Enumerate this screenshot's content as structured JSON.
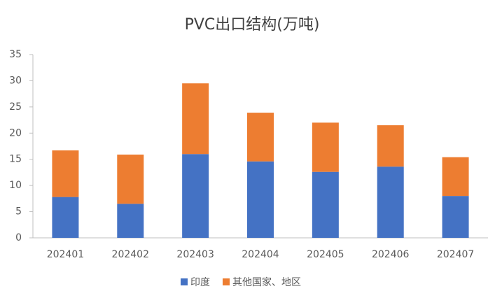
{
  "chart_data": {
    "type": "stacked-bar",
    "title": "PVC出口结构(万吨)",
    "categories": [
      "202401",
      "202402",
      "202403",
      "202404",
      "202405",
      "202406",
      "202407"
    ],
    "series": [
      {
        "name": "印度",
        "color": "#4472c4",
        "values": [
          7.8,
          6.5,
          16.0,
          14.6,
          12.6,
          13.6,
          8.0
        ]
      },
      {
        "name": "其他国家、地区",
        "color": "#ed7d31",
        "values": [
          8.9,
          9.4,
          13.5,
          9.3,
          9.4,
          7.9,
          7.4
        ]
      }
    ],
    "ylim": [
      0,
      35
    ],
    "yticks": [
      0,
      5,
      10,
      15,
      20,
      25,
      30,
      35
    ],
    "grid": false,
    "legend": "bottom"
  }
}
